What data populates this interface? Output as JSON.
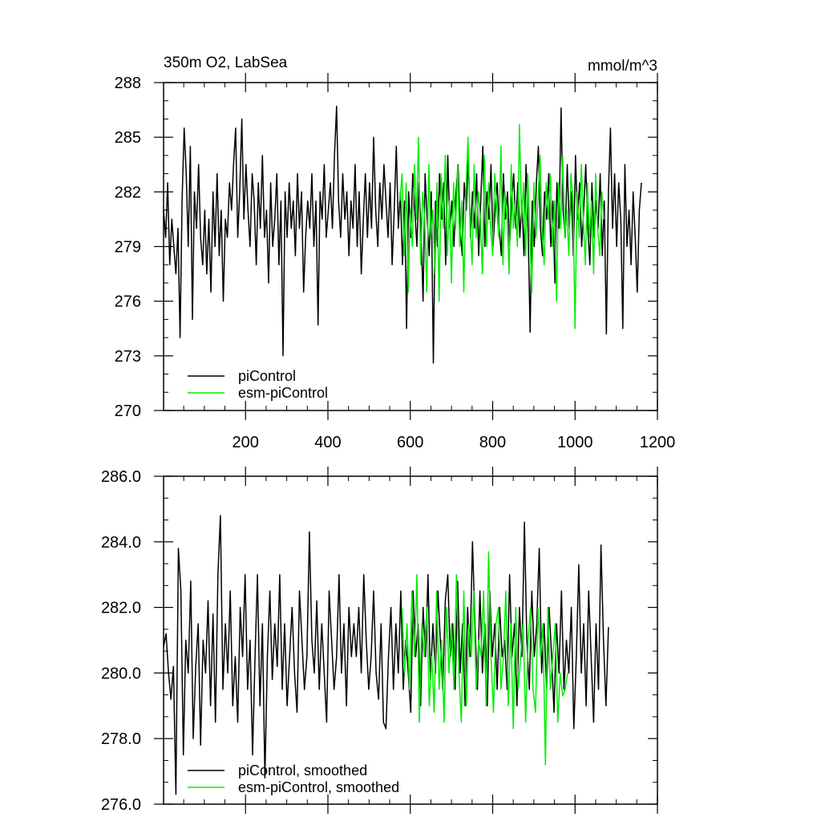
{
  "chart_data": [
    {
      "type": "line",
      "title": "350m O2, LabSea",
      "units": "mmol/m^3",
      "xlabel": "",
      "ylabel": "",
      "xlim": [
        1,
        1200
      ],
      "ylim": [
        270,
        288
      ],
      "x_ticks": [
        200,
        400,
        600,
        800,
        1000,
        1200
      ],
      "x_tick_labels": [
        "200",
        "400",
        "600",
        "800",
        "1000",
        "1200"
      ],
      "y_ticks": [
        270,
        273,
        276,
        279,
        282,
        285,
        288
      ],
      "y_tick_labels": [
        "270",
        "273",
        "276",
        "279",
        "282",
        "285",
        "288"
      ],
      "grid": false,
      "legend_position": "bottom-left",
      "series": [
        {
          "name": "piControl",
          "color": "#000000",
          "x_start": 1,
          "x_step": 5,
          "values": [
            281.0,
            279.5,
            282.5,
            278.0,
            280.5,
            279.0,
            277.5,
            280.0,
            274.0,
            281.5,
            285.5,
            283.0,
            279.0,
            284.5,
            275.0,
            282.0,
            280.0,
            283.5,
            279.5,
            278.0,
            281.0,
            277.5,
            280.5,
            276.5,
            282.0,
            279.0,
            283.0,
            278.5,
            281.0,
            276.0,
            280.5,
            279.5,
            282.5,
            281.0,
            283.5,
            285.5,
            279.5,
            282.0,
            286.0,
            280.5,
            283.5,
            281.0,
            279.0,
            283.0,
            281.5,
            278.0,
            282.5,
            280.0,
            284.0,
            279.5,
            281.0,
            277.0,
            282.5,
            279.0,
            280.5,
            283.0,
            278.0,
            281.5,
            273.0,
            282.0,
            279.5,
            282.5,
            280.0,
            281.5,
            278.5,
            283.0,
            280.0,
            282.0,
            276.5,
            279.5,
            281.5,
            280.0,
            283.0,
            279.0,
            281.5,
            274.7,
            282.0,
            280.5,
            283.5,
            279.5,
            281.0,
            282.5,
            280.0,
            284.0,
            286.7,
            281.5,
            279.5,
            283.0,
            280.5,
            282.0,
            278.5,
            281.5,
            280.0,
            283.5,
            279.0,
            282.0,
            277.5,
            280.5,
            283.0,
            279.5,
            282.5,
            280.0,
            285.0,
            281.0,
            279.0,
            282.5,
            280.5,
            283.5,
            281.5,
            279.5,
            282.5,
            278.0,
            281.0,
            284.5,
            280.0,
            282.0,
            278.0,
            281.5,
            274.5,
            282.0,
            279.5,
            283.0,
            281.0,
            279.0,
            282.5,
            280.0,
            276.0,
            283.0,
            280.5,
            278.5,
            282.0,
            272.6,
            281.5,
            279.0,
            283.0,
            280.5,
            282.5,
            278.0,
            284.0,
            280.0,
            281.5,
            279.0,
            282.0,
            283.5,
            280.0,
            278.5,
            282.5,
            281.0,
            284.0,
            279.5,
            282.0,
            280.0,
            283.0,
            278.5,
            281.5,
            284.5,
            279.0,
            282.0,
            280.5,
            283.5,
            279.0,
            281.0,
            282.5,
            280.0,
            278.5,
            283.0,
            280.5,
            282.0,
            279.0,
            281.5,
            283.0,
            280.0,
            282.5,
            279.5,
            281.5,
            278.5,
            283.5,
            280.0,
            274.3,
            281.5,
            279.0,
            282.5,
            284.5,
            280.0,
            278.5,
            282.0,
            280.5,
            283.0,
            279.0,
            281.5,
            277.0,
            282.5,
            280.0,
            286.6,
            281.0,
            279.5,
            283.5,
            280.0,
            282.0,
            278.5,
            284.0,
            280.5,
            282.5,
            279.0,
            281.0,
            283.5,
            280.0,
            278.0,
            282.5,
            279.5,
            281.5,
            280.0,
            283.0,
            278.5,
            281.5,
            274.2,
            282.0,
            285.5,
            280.0,
            283.0,
            279.0,
            282.5,
            280.5,
            274.5,
            283.5,
            279.0,
            281.0,
            278.0,
            282.0,
            279.5,
            276.5,
            281.0,
            282.5
          ]
        },
        {
          "name": "esm-piControl",
          "color": "#00ee00",
          "x_start": 575,
          "x_step": 5,
          "values": [
            281.5,
            283.0,
            278.5,
            282.5,
            276.5,
            281.0,
            279.0,
            283.5,
            280.5,
            285.0,
            278.0,
            282.0,
            280.5,
            276.5,
            283.5,
            279.5,
            281.0,
            277.5,
            282.5,
            276.0,
            283.0,
            280.0,
            284.0,
            278.5,
            281.5,
            277.0,
            282.5,
            280.0,
            283.5,
            279.0,
            281.5,
            276.5,
            282.0,
            285.0,
            280.5,
            278.0,
            283.5,
            279.5,
            282.0,
            280.5,
            277.5,
            284.0,
            279.0,
            282.5,
            280.0,
            278.5,
            283.0,
            281.0,
            279.5,
            284.5,
            278.0,
            282.0,
            280.5,
            277.5,
            283.5,
            280.0,
            281.5,
            279.0,
            285.7,
            280.5,
            282.5,
            278.5,
            283.0,
            280.0,
            276.5,
            282.5,
            279.5,
            281.5,
            284.0,
            280.0,
            278.0,
            282.5,
            280.5,
            283.0,
            279.0,
            281.5,
            276.0,
            282.5,
            280.0,
            284.0,
            279.5,
            281.0,
            278.5,
            283.0,
            281.5,
            274.5,
            282.0,
            279.5,
            283.5,
            280.5,
            278.0,
            282.5,
            279.5,
            281.5,
            277.5,
            283.0,
            280.0,
            278.5,
            282.0,
            280.5
          ]
        }
      ]
    },
    {
      "type": "line",
      "title": "",
      "xlabel": "",
      "ylabel": "",
      "xlim": [
        1,
        1200
      ],
      "ylim": [
        276,
        286
      ],
      "y_ticks": [
        276,
        278,
        280,
        282,
        284,
        286
      ],
      "y_tick_labels": [
        "276.0",
        "278.0",
        "280.0",
        "282.0",
        "284.0",
        "286.0"
      ],
      "grid": false,
      "legend_position": "bottom-left",
      "series": [
        {
          "name": "piControl, smoothed",
          "color": "#000000",
          "x_start": 1,
          "x_step": 6,
          "values": [
            280.8,
            281.2,
            280.0,
            279.2,
            280.2,
            276.3,
            283.8,
            282.5,
            277.5,
            281.0,
            280.0,
            282.8,
            278.0,
            280.2,
            281.5,
            277.8,
            281.0,
            280.0,
            282.2,
            279.0,
            281.8,
            278.5,
            283.0,
            284.8,
            279.5,
            281.5,
            280.0,
            282.5,
            279.0,
            280.5,
            278.5,
            282.0,
            280.5,
            283.0,
            279.5,
            281.0,
            277.5,
            280.5,
            283.0,
            279.0,
            281.5,
            276.8,
            280.5,
            282.5,
            279.8,
            281.5,
            280.2,
            283.0,
            279.5,
            281.5,
            279.0,
            280.5,
            282.0,
            280.0,
            278.8,
            282.5,
            281.0,
            279.5,
            280.5,
            284.3,
            281.0,
            280.0,
            282.2,
            279.5,
            281.5,
            280.0,
            278.5,
            282.5,
            281.0,
            279.5,
            280.5,
            283.0,
            280.0,
            281.5,
            279.0,
            282.0,
            280.5,
            281.5,
            280.5,
            282.0,
            280.0,
            283.0,
            281.0,
            279.5,
            280.5,
            282.5,
            280.0,
            279.2,
            281.5,
            278.5,
            278.3,
            280.5,
            282.0,
            279.5,
            281.5,
            280.0,
            282.5,
            279.5,
            281.0,
            280.0,
            278.8,
            282.5,
            280.5,
            281.5,
            279.0,
            282.0,
            280.5,
            283.0,
            279.8,
            281.5,
            280.0,
            282.5,
            281.0,
            279.5,
            282.2,
            283.0,
            280.5,
            281.5,
            279.5,
            282.8,
            280.0,
            281.5,
            279.0,
            282.0,
            280.5,
            284.0,
            281.5,
            279.5,
            282.5,
            280.0,
            281.5,
            279.0,
            282.5,
            280.5,
            281.5,
            279.5,
            282.0,
            280.5,
            281.0,
            279.5,
            283.0,
            280.5,
            281.5,
            279.0,
            282.0,
            280.5,
            284.6,
            281.0,
            279.5,
            282.5,
            280.5,
            281.5,
            283.8,
            280.0,
            281.5,
            279.5,
            282.0,
            280.5,
            278.8,
            281.5,
            280.0,
            282.5,
            279.5,
            281.0,
            280.0,
            282.0,
            278.3,
            280.5,
            283.3,
            280.0,
            281.5,
            279.0,
            282.5,
            280.5,
            278.5,
            281.5,
            279.5,
            283.9,
            281.0,
            279.0,
            281.4
          ]
        },
        {
          "name": "esm-piControl, smoothed",
          "color": "#00ee00",
          "x_start": 580,
          "x_step": 6,
          "values": [
            282.0,
            280.0,
            281.5,
            279.5,
            282.5,
            280.5,
            283.0,
            278.5,
            281.5,
            280.5,
            282.0,
            279.0,
            280.5,
            278.8,
            282.5,
            279.5,
            281.0,
            278.5,
            282.0,
            280.0,
            281.5,
            279.5,
            283.0,
            280.0,
            278.5,
            282.5,
            279.0,
            281.5,
            280.5,
            282.5,
            279.5,
            281.0,
            280.5,
            282.5,
            279.0,
            283.7,
            280.5,
            278.8,
            281.5,
            282.0,
            279.5,
            280.5,
            282.5,
            279.0,
            281.5,
            278.3,
            282.0,
            279.5,
            280.5,
            281.5,
            278.5,
            281.0,
            282.0,
            279.5,
            278.8,
            282.0,
            280.5,
            281.5,
            277.2,
            282.0,
            279.5,
            280.5,
            281.5,
            278.5,
            280.0,
            279.3,
            279.5,
            280.0
          ]
        }
      ]
    }
  ]
}
